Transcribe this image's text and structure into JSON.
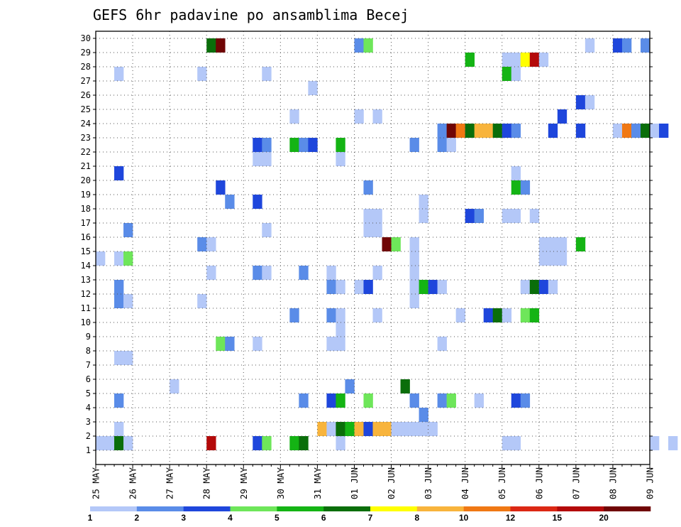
{
  "chart_data": {
    "type": "heatmap",
    "title": "GEFS 6hr padavine po ansamblima Becej",
    "xlabel": "",
    "ylabel": "",
    "y_ticks": [
      "1",
      "2",
      "3",
      "4",
      "5",
      "6",
      "7",
      "8",
      "9",
      "10",
      "11",
      "12",
      "13",
      "14",
      "15",
      "16",
      "17",
      "18",
      "19",
      "20",
      "21",
      "22",
      "23",
      "24",
      "25",
      "26",
      "27",
      "28",
      "29",
      "30"
    ],
    "x_ticks": [
      "25 MAY",
      "26 MAY",
      "27 MAY",
      "28 MAY",
      "29 MAY",
      "30 MAY",
      "31 MAY",
      "01 JUN",
      "02 JUN",
      "03 JUN",
      "04 JUN",
      "05 JUN",
      "06 JUN",
      "07 JUN",
      "08 JUN",
      "09 JUN"
    ],
    "x_steps_per_day": 4,
    "grid": true,
    "colorbar": {
      "labels": [
        "1",
        "2",
        "3",
        "4",
        "5",
        "6",
        "7",
        "8",
        "10",
        "12",
        "15",
        "20"
      ],
      "colors": [
        "#b4c8f8",
        "#5a8ce8",
        "#1e46dc",
        "#6ee65a",
        "#14b414",
        "#0a6e0a",
        "#ffff00",
        "#f8b43c",
        "#f07814",
        "#dc2814",
        "#b40a0a",
        "#700505"
      ]
    },
    "cells": [
      [
        0,
        1,
        0
      ],
      [
        1,
        1,
        0
      ],
      [
        2,
        1,
        5
      ],
      [
        3,
        1,
        0
      ],
      [
        12,
        1,
        10
      ],
      [
        17,
        1,
        2
      ],
      [
        18,
        1,
        3
      ],
      [
        21,
        1,
        4
      ],
      [
        22,
        1,
        5
      ],
      [
        26,
        1,
        0
      ],
      [
        44,
        1,
        0
      ],
      [
        45,
        1,
        0
      ],
      [
        60,
        1,
        0
      ],
      [
        62,
        1,
        0
      ],
      [
        66,
        1,
        4
      ],
      [
        67,
        1,
        0
      ],
      [
        72,
        1,
        2
      ],
      [
        76,
        1,
        9
      ],
      [
        80,
        1,
        0
      ],
      [
        82,
        1,
        0
      ],
      [
        88,
        1,
        0
      ],
      [
        2,
        2,
        0
      ],
      [
        24,
        2,
        7
      ],
      [
        25,
        2,
        0
      ],
      [
        26,
        2,
        5
      ],
      [
        27,
        2,
        4
      ],
      [
        28,
        2,
        7
      ],
      [
        29,
        2,
        2
      ],
      [
        30,
        2,
        7
      ],
      [
        31,
        2,
        7
      ],
      [
        32,
        2,
        0
      ],
      [
        33,
        2,
        0
      ],
      [
        34,
        2,
        0
      ],
      [
        35,
        2,
        0
      ],
      [
        36,
        2,
        0
      ],
      [
        77,
        2,
        0
      ],
      [
        78,
        2,
        0
      ],
      [
        82,
        2,
        2
      ],
      [
        88,
        2,
        2
      ],
      [
        35,
        3,
        1
      ],
      [
        2,
        4,
        1
      ],
      [
        22,
        4,
        1
      ],
      [
        25,
        4,
        2
      ],
      [
        26,
        4,
        4
      ],
      [
        29,
        4,
        3
      ],
      [
        34,
        4,
        1
      ],
      [
        37,
        4,
        1
      ],
      [
        38,
        4,
        3
      ],
      [
        41,
        4,
        0
      ],
      [
        45,
        4,
        2
      ],
      [
        46,
        4,
        1
      ],
      [
        82,
        4,
        0
      ],
      [
        8,
        5,
        0
      ],
      [
        27,
        5,
        1
      ],
      [
        33,
        5,
        5
      ],
      [
        81,
        5,
        1
      ],
      [
        76,
        6,
        0
      ],
      [
        77,
        6,
        0
      ],
      [
        86,
        6,
        1
      ],
      [
        87,
        6,
        0
      ],
      [
        2,
        7,
        0
      ],
      [
        3,
        7,
        0
      ],
      [
        13,
        8,
        3
      ],
      [
        14,
        8,
        1
      ],
      [
        17,
        8,
        0
      ],
      [
        25,
        8,
        0
      ],
      [
        26,
        8,
        0
      ],
      [
        37,
        8,
        0
      ],
      [
        26,
        9,
        0
      ],
      [
        82,
        9,
        4
      ],
      [
        21,
        10,
        1
      ],
      [
        25,
        10,
        1
      ],
      [
        26,
        10,
        0
      ],
      [
        30,
        10,
        0
      ],
      [
        39,
        10,
        0
      ],
      [
        42,
        10,
        2
      ],
      [
        43,
        10,
        5
      ],
      [
        44,
        10,
        0
      ],
      [
        46,
        10,
        3
      ],
      [
        47,
        10,
        4
      ],
      [
        2,
        11,
        1
      ],
      [
        3,
        11,
        0
      ],
      [
        11,
        11,
        0
      ],
      [
        34,
        11,
        0
      ],
      [
        2,
        12,
        1
      ],
      [
        25,
        12,
        1
      ],
      [
        26,
        12,
        0
      ],
      [
        28,
        12,
        0
      ],
      [
        29,
        12,
        2
      ],
      [
        34,
        12,
        0
      ],
      [
        35,
        12,
        4
      ],
      [
        36,
        12,
        2
      ],
      [
        37,
        12,
        0
      ],
      [
        46,
        12,
        0
      ],
      [
        47,
        12,
        5
      ],
      [
        48,
        12,
        2
      ],
      [
        49,
        12,
        0
      ],
      [
        12,
        13,
        0
      ],
      [
        17,
        13,
        1
      ],
      [
        18,
        13,
        0
      ],
      [
        22,
        13,
        1
      ],
      [
        25,
        13,
        0
      ],
      [
        30,
        13,
        0
      ],
      [
        34,
        13,
        0
      ],
      [
        0,
        14,
        0
      ],
      [
        2,
        14,
        0
      ],
      [
        3,
        14,
        3
      ],
      [
        34,
        14,
        0
      ],
      [
        48,
        14,
        0
      ],
      [
        49,
        14,
        0
      ],
      [
        50,
        14,
        0
      ],
      [
        11,
        15,
        1
      ],
      [
        12,
        15,
        0
      ],
      [
        31,
        15,
        11
      ],
      [
        32,
        15,
        3
      ],
      [
        34,
        15,
        0
      ],
      [
        48,
        15,
        0
      ],
      [
        49,
        15,
        0
      ],
      [
        50,
        15,
        0
      ],
      [
        52,
        15,
        4
      ],
      [
        89,
        15,
        0
      ],
      [
        3,
        16,
        1
      ],
      [
        18,
        16,
        0
      ],
      [
        29,
        16,
        0
      ],
      [
        30,
        16,
        0
      ],
      [
        78,
        16,
        0
      ],
      [
        79,
        16,
        1
      ],
      [
        82,
        16,
        2
      ],
      [
        29,
        17,
        0
      ],
      [
        30,
        17,
        0
      ],
      [
        35,
        17,
        0
      ],
      [
        40,
        17,
        2
      ],
      [
        41,
        17,
        1
      ],
      [
        44,
        17,
        0
      ],
      [
        45,
        17,
        0
      ],
      [
        47,
        17,
        0
      ],
      [
        77,
        17,
        0
      ],
      [
        78,
        17,
        0
      ],
      [
        14,
        18,
        1
      ],
      [
        17,
        18,
        2
      ],
      [
        35,
        18,
        0
      ],
      [
        77,
        18,
        0
      ],
      [
        78,
        18,
        0
      ],
      [
        84,
        18,
        1
      ],
      [
        88,
        18,
        6
      ],
      [
        89,
        18,
        10
      ],
      [
        13,
        19,
        2
      ],
      [
        29,
        19,
        1
      ],
      [
        45,
        19,
        4
      ],
      [
        46,
        19,
        1
      ],
      [
        79,
        19,
        8
      ],
      [
        81,
        19,
        2
      ],
      [
        2,
        20,
        2
      ],
      [
        45,
        20,
        0
      ],
      [
        17,
        21,
        0
      ],
      [
        18,
        21,
        0
      ],
      [
        26,
        21,
        0
      ],
      [
        74,
        21,
        1
      ],
      [
        75,
        21,
        0
      ],
      [
        17,
        22,
        2
      ],
      [
        18,
        22,
        1
      ],
      [
        21,
        22,
        4
      ],
      [
        22,
        22,
        1
      ],
      [
        23,
        22,
        2
      ],
      [
        26,
        22,
        4
      ],
      [
        34,
        22,
        1
      ],
      [
        37,
        22,
        1
      ],
      [
        38,
        22,
        0
      ],
      [
        37,
        23,
        1
      ],
      [
        38,
        23,
        11
      ],
      [
        39,
        23,
        8
      ],
      [
        40,
        23,
        5
      ],
      [
        41,
        23,
        7
      ],
      [
        42,
        23,
        7
      ],
      [
        43,
        23,
        5
      ],
      [
        44,
        23,
        2
      ],
      [
        45,
        23,
        1
      ],
      [
        49,
        23,
        2
      ],
      [
        52,
        23,
        2
      ],
      [
        56,
        23,
        0
      ],
      [
        57,
        23,
        8
      ],
      [
        58,
        23,
        1
      ],
      [
        59,
        23,
        5
      ],
      [
        60,
        23,
        0
      ],
      [
        61,
        23,
        2
      ],
      [
        21,
        24,
        0
      ],
      [
        28,
        24,
        0
      ],
      [
        30,
        24,
        0
      ],
      [
        50,
        24,
        2
      ],
      [
        52,
        25,
        2
      ],
      [
        53,
        25,
        0
      ],
      [
        23,
        26,
        0
      ],
      [
        2,
        27,
        0
      ],
      [
        11,
        27,
        0
      ],
      [
        18,
        27,
        0
      ],
      [
        44,
        27,
        4
      ],
      [
        45,
        27,
        0
      ],
      [
        40,
        28,
        4
      ],
      [
        44,
        28,
        0
      ],
      [
        45,
        28,
        0
      ],
      [
        46,
        28,
        6
      ],
      [
        47,
        28,
        10
      ],
      [
        48,
        28,
        0
      ],
      [
        12,
        29,
        5
      ],
      [
        13,
        29,
        11
      ],
      [
        28,
        29,
        1
      ],
      [
        29,
        29,
        3
      ],
      [
        53,
        29,
        0
      ],
      [
        56,
        29,
        2
      ],
      [
        57,
        29,
        1
      ],
      [
        59,
        29,
        1
      ]
    ]
  }
}
